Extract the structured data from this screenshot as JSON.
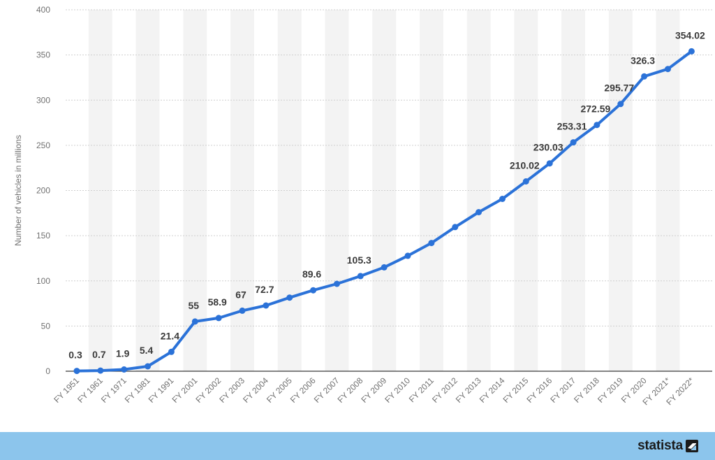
{
  "chart_data": {
    "type": "line",
    "title": "",
    "xlabel": "",
    "ylabel": "Number of vehicles in millions",
    "ylim": [
      0,
      400
    ],
    "yticks": [
      0,
      50,
      100,
      150,
      200,
      250,
      300,
      350,
      400
    ],
    "grid": true,
    "legend": "none",
    "categories": [
      "FY 1951",
      "FY 1961",
      "FY 1971",
      "FY 1981",
      "FY 1991",
      "FY 2001",
      "FY 2002",
      "FY 2003",
      "FY 2004",
      "FY 2005",
      "FY 2006",
      "FY 2007",
      "FY 2008",
      "FY 2009",
      "FY 2010",
      "FY 2011",
      "FY 2012",
      "FY 2013",
      "FY 2014",
      "FY 2015",
      "FY 2016",
      "FY 2017",
      "FY 2018",
      "FY 2019",
      "FY 2020",
      "FY 2021*",
      "FY 2022*"
    ],
    "series": [
      {
        "values": [
          0.3,
          0.7,
          1.9,
          5.4,
          21.4,
          55,
          58.9,
          67,
          72.7,
          81.5,
          89.6,
          96.7,
          105.3,
          115,
          127.7,
          141.9,
          159.5,
          176,
          190.7,
          210.02,
          230.03,
          253.31,
          272.59,
          295.77,
          326.3,
          334.5,
          354.02
        ],
        "labels": [
          "0.3",
          "0.7",
          "1.9",
          "5.4",
          "21.4",
          "55",
          "58.9",
          "67",
          "72.7",
          "",
          "89.6",
          "",
          "105.3",
          "",
          "",
          "",
          "",
          "",
          "",
          "210.02",
          "230.03",
          "253.31",
          "272.59",
          "295.77",
          "326.3",
          "",
          "354.02"
        ]
      }
    ],
    "colors": {
      "line": "#2b72d8",
      "grid": "#cfcfcf",
      "band": "#f3f3f3",
      "axis_text": "#707070",
      "label_text": "#3a3a3a"
    }
  },
  "footer": {
    "brand": "statista",
    "brand_icon": "statista-logo-icon",
    "bar_color": "#8cc5ec"
  }
}
